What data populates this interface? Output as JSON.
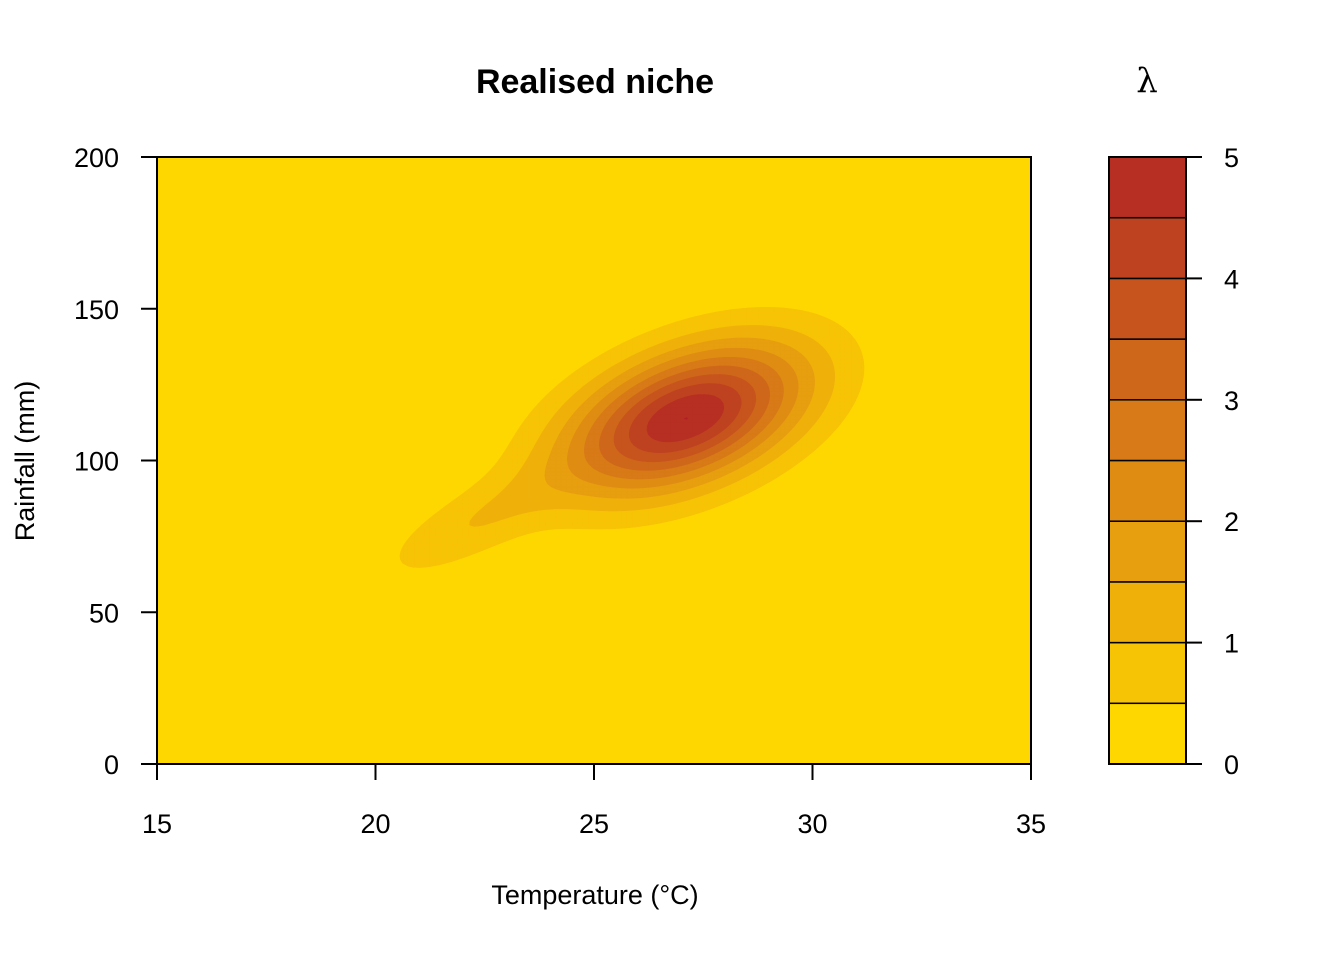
{
  "chart_data": {
    "type": "heatmap",
    "subtype": "filled-contour",
    "title": "Realised niche",
    "xlabel": "Temperature (°C)",
    "ylabel": "Rainfall (mm)",
    "xlim": [
      15,
      35
    ],
    "ylim": [
      0,
      200
    ],
    "x_ticks": [
      15,
      20,
      25,
      30,
      35
    ],
    "y_ticks": [
      0,
      50,
      100,
      150,
      200
    ],
    "colorbar": {
      "label": "λ",
      "levels": [
        0,
        0.5,
        1,
        1.5,
        2,
        2.5,
        3,
        3.5,
        4,
        4.5,
        5
      ],
      "ticks": [
        0,
        1,
        2,
        3,
        4,
        5
      ],
      "colors": [
        "#FFD700",
        "#F7C305",
        "#EFB00A",
        "#E79E0F",
        "#DF8C13",
        "#D77A17",
        "#CF671A",
        "#C7541D",
        "#BF4220",
        "#B72F23",
        "#AF1E25"
      ]
    },
    "surface": {
      "components": [
        {
          "x": 27.1,
          "y": 114,
          "height": 5.0,
          "sx": 1.9,
          "sy": 17,
          "rho": 0.45
        },
        {
          "x": 22.2,
          "y": 79,
          "height": 0.9,
          "sx": 1.5,
          "sy": 13,
          "rho": 0.75
        }
      ]
    }
  }
}
